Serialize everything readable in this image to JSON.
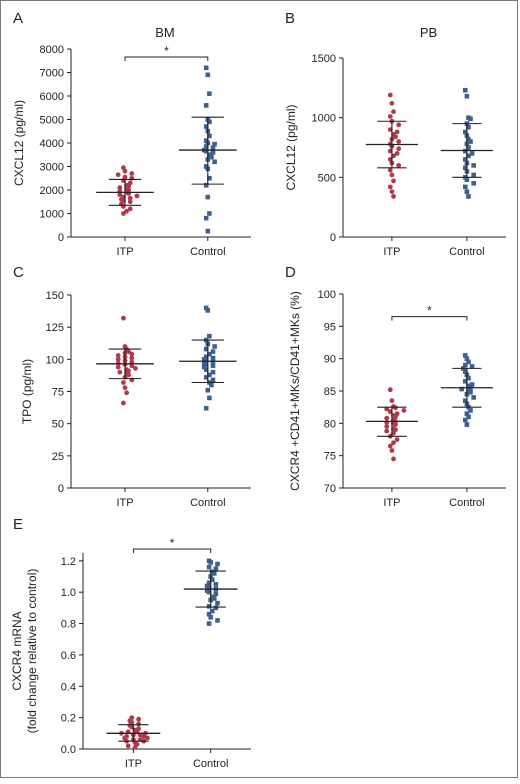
{
  "chart_data": [
    {
      "id": "A",
      "type": "scatter",
      "letter": "A",
      "title": "BM",
      "ylabel": "CXCL12 (pg/ml)",
      "ylabel2": "",
      "yticks": [
        0,
        1000,
        2000,
        3000,
        4000,
        5000,
        6000,
        7000,
        8000
      ],
      "ylim": [
        0,
        8000
      ],
      "categories": [
        "ITP",
        "Control"
      ],
      "significance": "*",
      "series": [
        {
          "category": "ITP",
          "color": "#b03a4a",
          "marker": "circle",
          "mean": 1900,
          "sd_low": 1350,
          "sd_high": 2450,
          "values": [
            2950,
            2800,
            2700,
            2650,
            2550,
            2500,
            2400,
            2300,
            2200,
            2150,
            2100,
            2050,
            2000,
            1950,
            1900,
            1850,
            1800,
            1750,
            1700,
            1650,
            1600,
            1550,
            1500,
            1400,
            1300,
            1200,
            1100,
            1000
          ]
        },
        {
          "category": "Control",
          "color": "#3f5f8f",
          "marker": "square",
          "mean": 3700,
          "sd_low": 2250,
          "sd_high": 5100,
          "values": [
            7200,
            6900,
            6100,
            5600,
            5000,
            4900,
            4700,
            4500,
            4300,
            4100,
            4000,
            3950,
            3850,
            3800,
            3700,
            3650,
            3600,
            3500,
            3400,
            3300,
            3200,
            3000,
            2900,
            2500,
            2200,
            1700,
            1000,
            800,
            250
          ]
        }
      ]
    },
    {
      "id": "B",
      "type": "scatter",
      "letter": "B",
      "title": "PB",
      "ylabel": "CXCL12 (pg/ml)",
      "ylabel2": "",
      "yticks": [
        0,
        500,
        1000,
        1500
      ],
      "ylim": [
        0,
        1500
      ],
      "categories": [
        "ITP",
        "Control"
      ],
      "significance": "",
      "series": [
        {
          "category": "ITP",
          "color": "#b03a4a",
          "marker": "circle",
          "mean": 775,
          "sd_low": 580,
          "sd_high": 970,
          "values": [
            1190,
            1120,
            1050,
            1010,
            970,
            940,
            900,
            880,
            860,
            840,
            820,
            800,
            780,
            760,
            740,
            720,
            700,
            680,
            650,
            620,
            600,
            560,
            520,
            470,
            420,
            380,
            340
          ]
        },
        {
          "category": "Control",
          "color": "#3f5f8f",
          "marker": "square",
          "mean": 725,
          "sd_low": 500,
          "sd_high": 950,
          "values": [
            1230,
            1180,
            1000,
            990,
            950,
            920,
            880,
            850,
            820,
            800,
            780,
            750,
            720,
            700,
            680,
            650,
            620,
            600,
            580,
            550,
            520,
            500,
            480,
            450,
            420,
            380,
            340
          ]
        }
      ]
    },
    {
      "id": "C",
      "type": "scatter",
      "letter": "C",
      "title": "",
      "ylabel": "TPO (pg/ml)",
      "ylabel2": "",
      "yticks": [
        0,
        25,
        50,
        75,
        100,
        125,
        150
      ],
      "ylim": [
        0,
        150
      ],
      "categories": [
        "ITP",
        "Control"
      ],
      "significance": "",
      "series": [
        {
          "category": "ITP",
          "color": "#b03a4a",
          "marker": "circle",
          "mean": 96.5,
          "sd_low": 85,
          "sd_high": 108,
          "values": [
            132,
            110,
            108,
            106,
            105,
            104,
            103,
            102,
            101,
            100,
            99,
            98,
            97,
            96,
            95,
            94,
            93,
            92,
            91,
            90,
            89,
            88,
            86,
            84,
            82,
            78,
            74,
            66
          ]
        },
        {
          "category": "Control",
          "color": "#3f5f8f",
          "marker": "square",
          "mean": 98.5,
          "sd_low": 82,
          "sd_high": 115,
          "values": [
            140,
            138,
            118,
            115,
            112,
            110,
            108,
            106,
            104,
            102,
            101,
            100,
            99,
            98,
            97,
            96,
            95,
            94,
            92,
            90,
            88,
            86,
            84,
            82,
            80,
            76,
            70,
            62
          ]
        }
      ]
    },
    {
      "id": "D",
      "type": "scatter",
      "letter": "D",
      "title": "",
      "ylabel": "CXCR4 +CD41+MKs/CD41+MKs (%)",
      "ylabel2": "",
      "yticks": [
        70,
        75,
        80,
        85,
        90,
        95,
        100
      ],
      "ylim": [
        70,
        100
      ],
      "categories": [
        "ITP",
        "Control"
      ],
      "significance": "*",
      "series": [
        {
          "category": "ITP",
          "color": "#b03a4a",
          "marker": "circle",
          "mean": 80.3,
          "sd_low": 78,
          "sd_high": 82.5,
          "values": [
            85.2,
            83.5,
            82.6,
            82.4,
            82.2,
            82.0,
            81.8,
            81.5,
            81.2,
            81.0,
            80.8,
            80.5,
            80.3,
            80.1,
            80.0,
            79.8,
            79.5,
            79.2,
            79.0,
            78.8,
            78.5,
            78.0,
            77.5,
            77.0,
            76.5,
            75.8,
            74.5
          ]
        },
        {
          "category": "Control",
          "color": "#3f5f8f",
          "marker": "square",
          "mean": 85.5,
          "sd_low": 82.5,
          "sd_high": 88.5,
          "values": [
            90.5,
            90.0,
            89.5,
            89.0,
            88.8,
            88.5,
            88.0,
            87.5,
            87.0,
            86.5,
            86.0,
            85.8,
            85.5,
            85.3,
            85.0,
            84.8,
            84.5,
            84.0,
            83.5,
            83.0,
            82.5,
            82.0,
            81.5,
            81.0,
            80.5,
            79.8
          ]
        }
      ]
    },
    {
      "id": "E",
      "type": "scatter",
      "letter": "E",
      "title": "",
      "ylabel": "CXCR4 mRNA",
      "ylabel2": "(fold change relative to control)",
      "yticks": [
        0.0,
        0.2,
        0.4,
        0.6,
        0.8,
        1.0,
        1.2
      ],
      "ytick_labels": [
        "0.0",
        "0.2",
        "0.4",
        "0.6",
        "0.8",
        "1.0",
        "1.2"
      ],
      "ylim": [
        0,
        1.25
      ],
      "categories": [
        "ITP",
        "Control"
      ],
      "significance": "*",
      "series": [
        {
          "category": "ITP",
          "color": "#b03a4a",
          "marker": "circle",
          "mean": 0.1,
          "sd_low": 0.05,
          "sd_high": 0.155,
          "values": [
            0.2,
            0.19,
            0.18,
            0.17,
            0.16,
            0.15,
            0.14,
            0.13,
            0.12,
            0.11,
            0.11,
            0.1,
            0.1,
            0.09,
            0.09,
            0.08,
            0.08,
            0.07,
            0.07,
            0.06,
            0.06,
            0.05,
            0.05,
            0.04,
            0.03,
            0.02,
            0.01
          ]
        },
        {
          "category": "Control",
          "color": "#3f5f8f",
          "marker": "square",
          "mean": 1.02,
          "sd_low": 0.905,
          "sd_high": 1.135,
          "values": [
            1.2,
            1.19,
            1.18,
            1.16,
            1.15,
            1.13,
            1.12,
            1.1,
            1.08,
            1.06,
            1.05,
            1.04,
            1.03,
            1.02,
            1.01,
            1.0,
            0.99,
            0.97,
            0.96,
            0.95,
            0.93,
            0.91,
            0.9,
            0.88,
            0.86,
            0.84,
            0.82,
            0.8
          ]
        }
      ]
    }
  ]
}
